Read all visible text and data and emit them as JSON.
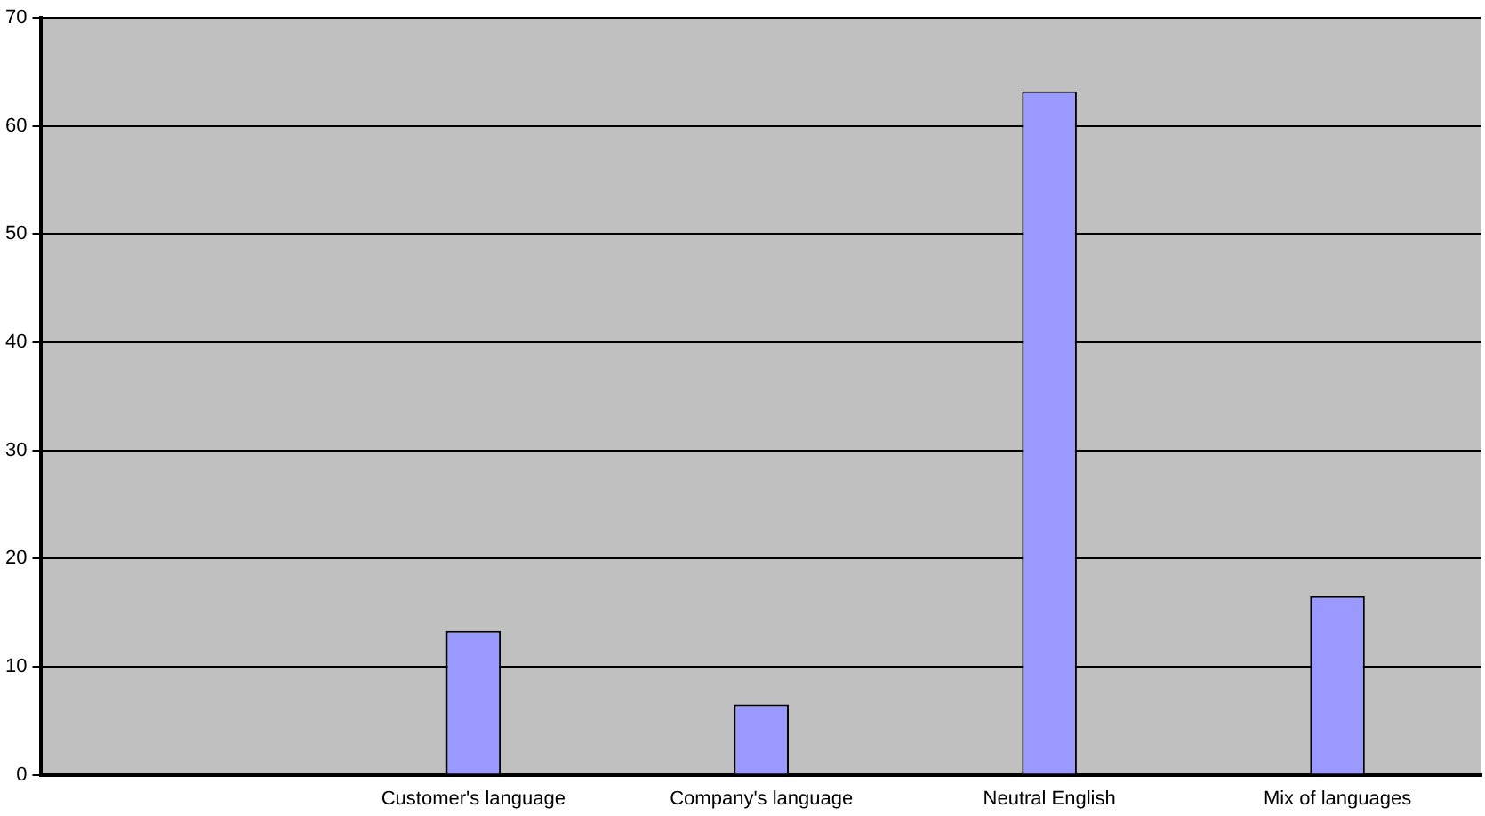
{
  "chart_data": {
    "type": "bar",
    "categories": [
      null,
      "Customer's language",
      "Company's language",
      "Neutral English",
      "Mix of languages"
    ],
    "values": [
      null,
      13.3,
      6.5,
      63.2,
      16.5
    ],
    "color": "#9999ff",
    "ylim": [
      0,
      70
    ],
    "yticks": [
      0,
      10,
      20,
      30,
      40,
      50,
      60,
      70
    ],
    "grid": "y"
  }
}
